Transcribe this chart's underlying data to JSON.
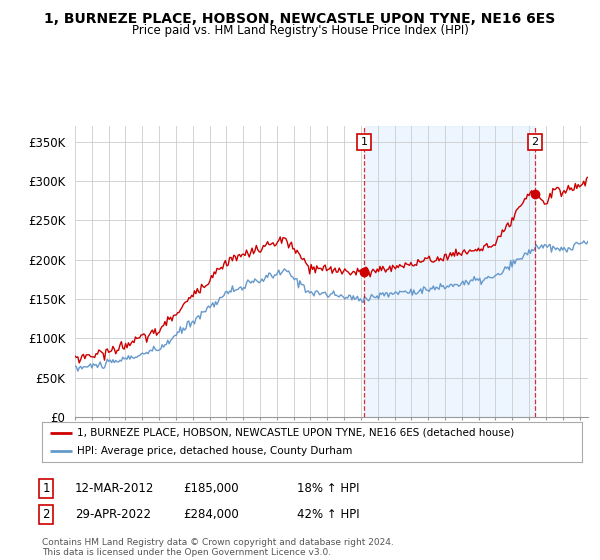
{
  "title": "1, BURNEZE PLACE, HOBSON, NEWCASTLE UPON TYNE, NE16 6ES",
  "subtitle": "Price paid vs. HM Land Registry's House Price Index (HPI)",
  "yticks": [
    0,
    50000,
    100000,
    150000,
    200000,
    250000,
    300000,
    350000
  ],
  "ytick_labels": [
    "£0",
    "£50K",
    "£100K",
    "£150K",
    "£200K",
    "£250K",
    "£300K",
    "£350K"
  ],
  "ylim": [
    0,
    370000
  ],
  "xlim_start": 1995.0,
  "xlim_end": 2025.5,
  "red_color": "#cc0000",
  "blue_color": "#6699cc",
  "blue_fill": "#ddeeff",
  "legend_red": "1, BURNEZE PLACE, HOBSON, NEWCASTLE UPON TYNE, NE16 6ES (detached house)",
  "legend_blue": "HPI: Average price, detached house, County Durham",
  "sale1_x": 2012.19,
  "sale1_y": 185000,
  "sale2_x": 2022.33,
  "sale2_y": 284000,
  "annotation1_date": "12-MAR-2012",
  "annotation1_price": "£185,000",
  "annotation1_hpi": "18% ↑ HPI",
  "annotation2_date": "29-APR-2022",
  "annotation2_price": "£284,000",
  "annotation2_hpi": "42% ↑ HPI",
  "footer": "Contains HM Land Registry data © Crown copyright and database right 2024.\nThis data is licensed under the Open Government Licence v3.0.",
  "background_color": "#ffffff",
  "grid_color": "#cccccc"
}
